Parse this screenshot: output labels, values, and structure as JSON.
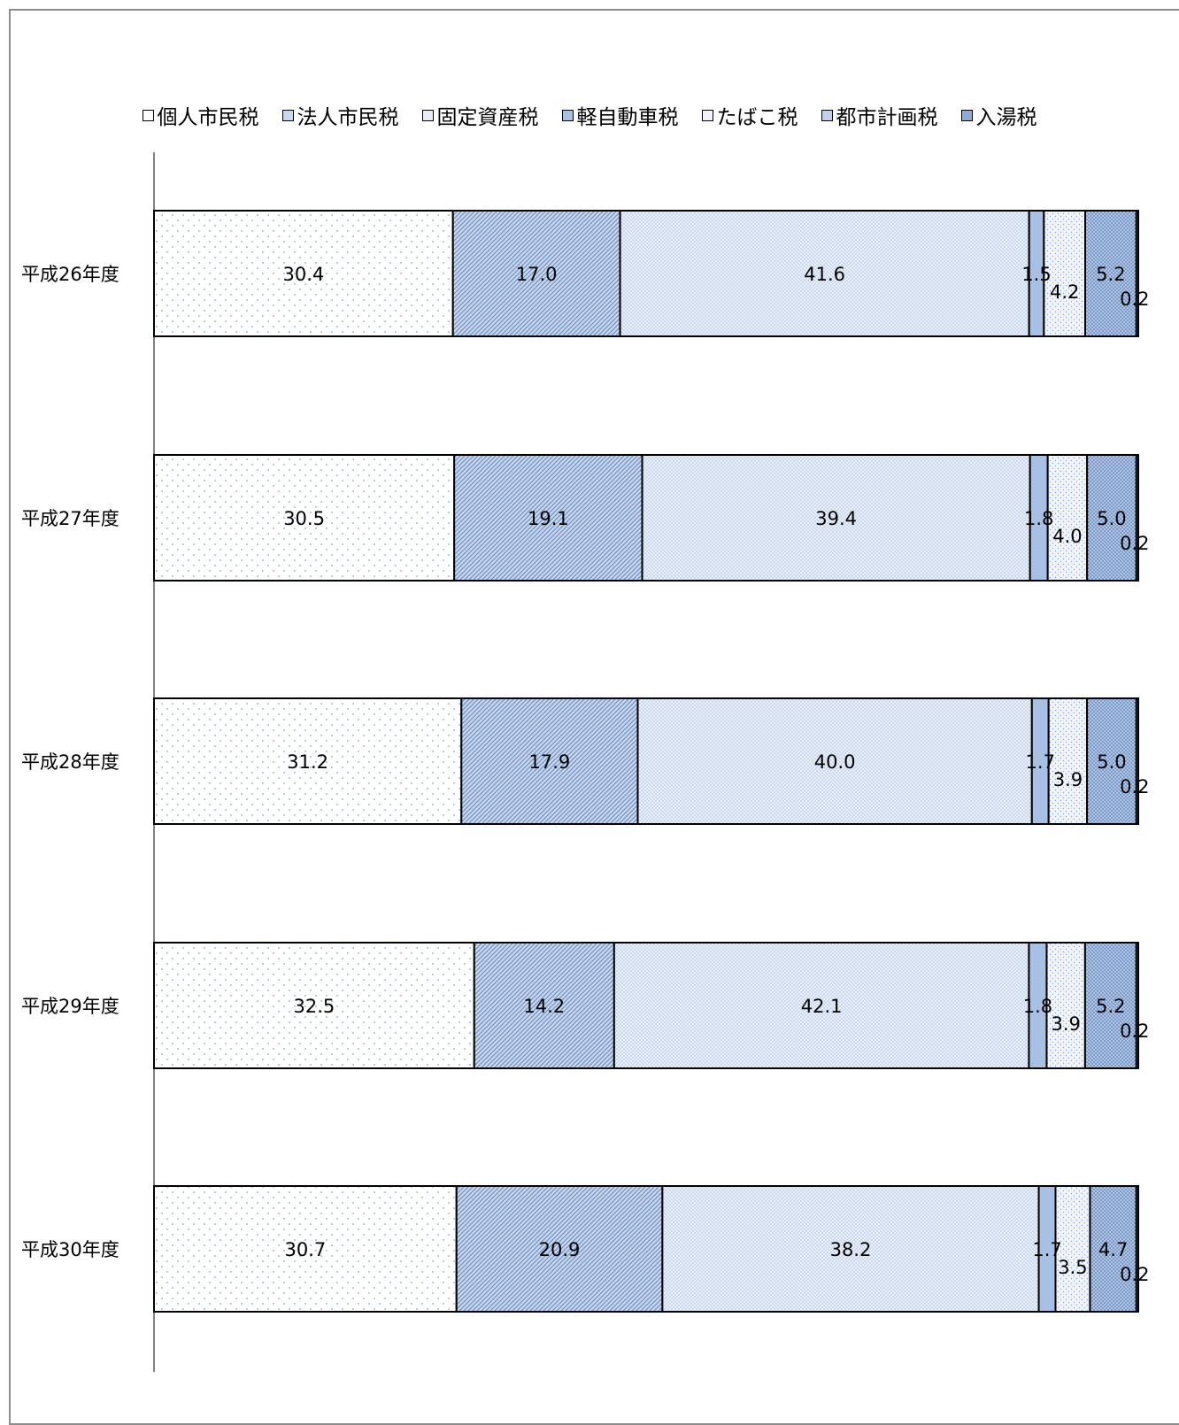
{
  "chart_data": {
    "type": "bar",
    "orientation": "horizontal",
    "stacked": "percent",
    "categories": [
      "平成26年度",
      "平成27年度",
      "平成28年度",
      "平成29年度",
      "平成30年度"
    ],
    "series": [
      {
        "name": "個人市民税",
        "values": [
          30.4,
          30.5,
          31.2,
          32.5,
          30.7
        ],
        "labels": [
          "30.4",
          "30.5",
          "31.2",
          "32.5",
          "30.7"
        ]
      },
      {
        "name": "法人市民税",
        "values": [
          17.0,
          19.1,
          17.9,
          14.2,
          20.9
        ],
        "labels": [
          "17.0",
          "19.1",
          "17.9",
          "14.2",
          "20.9"
        ]
      },
      {
        "name": "固定資産税",
        "values": [
          41.6,
          39.4,
          40.0,
          42.1,
          38.2
        ],
        "labels": [
          "41.6",
          "39.4",
          "40.0",
          "42.1",
          "38.2"
        ]
      },
      {
        "name": "軽自動車税",
        "values": [
          1.5,
          1.8,
          1.7,
          1.8,
          1.7
        ],
        "labels": [
          "1.5",
          "1.8",
          "1.7",
          "1.8",
          "1.7"
        ]
      },
      {
        "name": "たばこ税",
        "values": [
          4.2,
          4.0,
          3.9,
          3.9,
          3.5
        ],
        "labels": [
          "4.2",
          "4.0",
          "3.9",
          "3.9",
          "3.5"
        ]
      },
      {
        "name": "都市計画税",
        "values": [
          5.2,
          5.0,
          5.0,
          5.2,
          4.7
        ],
        "labels": [
          "5.2",
          "5.0",
          "5.0",
          "5.2",
          "4.7"
        ]
      },
      {
        "name": "入湯税",
        "values": [
          0.2,
          0.2,
          0.2,
          0.2,
          0.2
        ],
        "labels": [
          "0.2",
          "0.2",
          "0.2",
          "0.2",
          "0.2"
        ]
      }
    ],
    "title": "",
    "xlabel": "",
    "ylabel": "",
    "legend": "top",
    "grid": false
  },
  "colors": {
    "fill": [
      "#ffffff",
      "#c9d8ef",
      "#e8eef8",
      "#a8c0e4",
      "#f1f5fb",
      "#bfd1ec",
      "#8eacd8"
    ],
    "pattern": [
      "#7fa6d9",
      "#6f8fc2",
      "#8aa5cf",
      "#5a7fb8",
      "#8aa5cf",
      "#6f8fc2",
      "#3f64a0"
    ],
    "border": "#000000",
    "axis": "#595959"
  }
}
